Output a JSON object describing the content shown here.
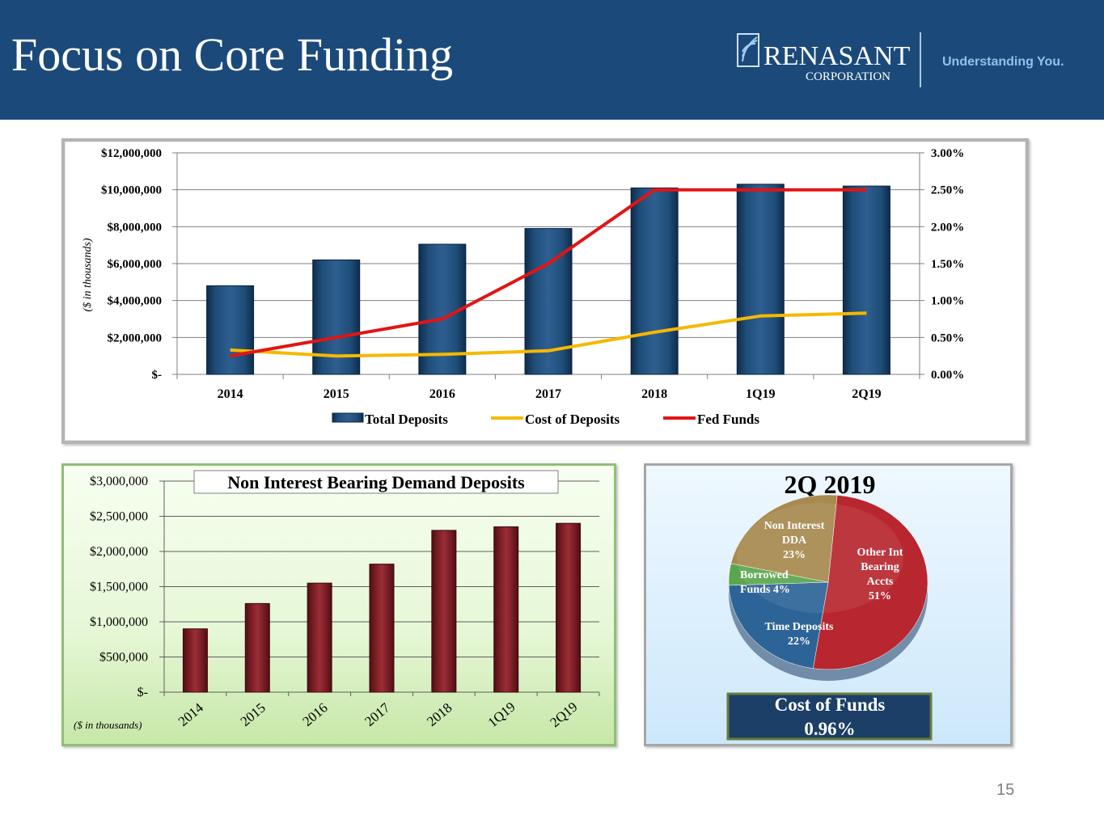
{
  "slide": {
    "title": "Focus on Core Funding",
    "page_number": "15",
    "logo": {
      "name": "RENASANT",
      "sub": "CORPORATION",
      "tagline": "Understanding You."
    }
  },
  "colors": {
    "header": "#1b4a7a",
    "bar_blue": "#1f4e79",
    "bar_red": "#7b1d24",
    "cost_line": "#f5b800",
    "fed_line": "#e31414"
  },
  "chart_data": [
    {
      "type": "bar+line",
      "categories": [
        "2014",
        "2015",
        "2016",
        "2017",
        "2018",
        "1Q19",
        "2Q19"
      ],
      "series": [
        {
          "name": "Total Deposits",
          "axis": "left",
          "type": "bar",
          "values": [
            4800000,
            6200000,
            7050000,
            7900000,
            10100000,
            10300000,
            10200000
          ]
        },
        {
          "name": "Cost of Deposits",
          "axis": "right",
          "type": "line",
          "values": [
            0.33,
            0.25,
            0.27,
            0.32,
            0.57,
            0.79,
            0.83
          ]
        },
        {
          "name": "Fed Funds",
          "axis": "right",
          "type": "line",
          "values": [
            0.25,
            0.5,
            0.75,
            1.5,
            2.5,
            2.5,
            2.5
          ]
        }
      ],
      "ylim_left": [
        0,
        12000000
      ],
      "ylim_right": [
        0,
        3.0
      ],
      "left_ticks": [
        "$-",
        "$2,000,000",
        "$4,000,000",
        "$6,000,000",
        "$8,000,000",
        "$10,000,000",
        "$12,000,000"
      ],
      "right_ticks": [
        "0.00%",
        "0.50%",
        "1.00%",
        "1.50%",
        "2.00%",
        "2.50%",
        "3.00%"
      ],
      "ylabel": "($ in thousands)",
      "legend": [
        "Total Deposits",
        "Cost of Deposits",
        "Fed Funds"
      ],
      "legend_position": "bottom"
    },
    {
      "type": "bar",
      "title": "Non Interest Bearing Demand Deposits",
      "categories": [
        "2014",
        "2015",
        "2016",
        "2017",
        "2018",
        "1Q19",
        "2Q19"
      ],
      "values": [
        900000,
        1260000,
        1550000,
        1820000,
        2300000,
        2350000,
        2400000
      ],
      "ylim": [
        0,
        3000000
      ],
      "y_ticks": [
        "$-",
        "$500,000",
        "$1,000,000",
        "$1,500,000",
        "$2,000,000",
        "$2,500,000",
        "$3,000,000"
      ],
      "ylabel": "($ in thousands)"
    },
    {
      "type": "pie",
      "title": "2Q 2019",
      "slices": [
        {
          "label": "Other Int Bearing Accts",
          "label_lines": [
            "Other Int",
            "Bearing",
            "Accts",
            "51%"
          ],
          "value": 51,
          "color": "#b8262f"
        },
        {
          "label": "Time Deposits",
          "label_lines": [
            "Time Deposits",
            "22%"
          ],
          "value": 22,
          "color": "#2d6497"
        },
        {
          "label": "Borrowed Funds",
          "label_lines": [
            "Borrowed",
            "Funds    4%"
          ],
          "value": 4,
          "color": "#5aa64e"
        },
        {
          "label": "Non Interest DDA",
          "label_lines": [
            "Non Interest",
            "DDA",
            "23%"
          ],
          "value": 23,
          "color": "#a8894f"
        }
      ],
      "cost_of_funds": {
        "label": "Cost of Funds",
        "value": "0.96%"
      }
    }
  ]
}
